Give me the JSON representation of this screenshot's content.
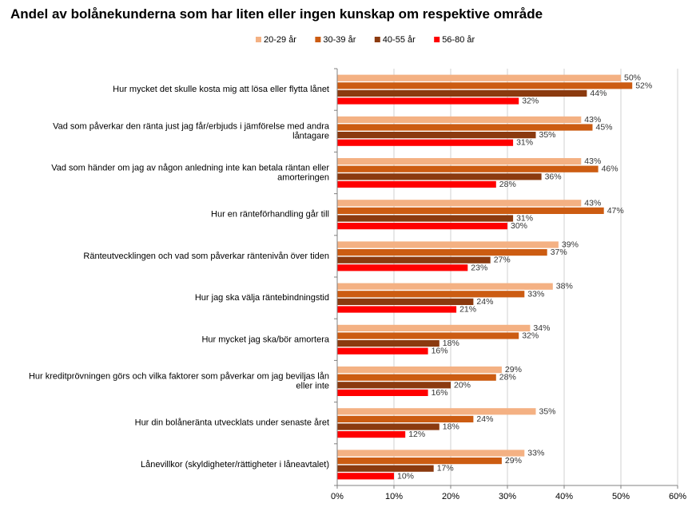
{
  "chart_data": {
    "type": "bar",
    "orientation": "horizontal",
    "title": "Andel av bolånekunderna som har liten eller ingen kunskap om respektive område",
    "categories": [
      [
        "Hur mycket det skulle kosta mig att lösa eller flytta lånet"
      ],
      [
        "Vad som påverkar den ränta just jag får/erbjuds i jämförelse med andra",
        "låntagare"
      ],
      [
        "Vad som händer om jag av någon anledning inte kan betala räntan eller",
        "amorteringen"
      ],
      [
        "Hur en ränteförhandling går till"
      ],
      [
        "Ränteutvecklingen och vad som påverkar räntenivån över tiden"
      ],
      [
        "Hur jag ska välja räntebindningstid"
      ],
      [
        "Hur mycket jag ska/bör amortera"
      ],
      [
        "Hur kreditprövningen görs och vilka faktorer som påverkar om jag beviljas lån",
        "eller inte"
      ],
      [
        "Hur din bolåneränta utvecklats under senaste året"
      ],
      [
        "Lånevillkor (skyldigheter/rättigheter i låneavtalet)"
      ]
    ],
    "series": [
      {
        "name": "20-29 år",
        "color": "#f4b183",
        "values": [
          50,
          43,
          43,
          43,
          39,
          38,
          34,
          29,
          35,
          33
        ],
        "labels": [
          "50%",
          "43%",
          "43%",
          "43%",
          "39%",
          "38%",
          "34%",
          "29%",
          "35%",
          "33%"
        ]
      },
      {
        "name": "30-39 år",
        "color": "#cc5c12",
        "values": [
          52,
          45,
          46,
          47,
          37,
          33,
          32,
          28,
          24,
          29
        ],
        "labels": [
          "52%",
          "45%",
          "46%",
          "47%",
          "37%",
          "33%",
          "32%",
          "28%",
          "24%",
          "29%"
        ]
      },
      {
        "name": "40-55 år",
        "color": "#8b3a0f",
        "values": [
          44,
          35,
          36,
          31,
          27,
          24,
          18,
          20,
          18,
          17
        ],
        "labels": [
          "44%",
          "35%",
          "36%",
          "31%",
          "27%",
          "24%",
          "18%",
          "20%",
          "18%",
          "17%"
        ]
      },
      {
        "name": "56-80 år",
        "color": "#ff0000",
        "values": [
          32,
          31,
          28,
          30,
          23,
          21,
          16,
          16,
          12,
          10
        ],
        "labels": [
          "32%",
          "31%",
          "28%",
          "30%",
          "23%",
          "21%",
          "16%",
          "16%",
          "12%",
          "10%"
        ]
      }
    ],
    "xlim": [
      0,
      60
    ],
    "xticks": [
      0,
      10,
      20,
      30,
      40,
      50,
      60
    ],
    "xtick_labels": [
      "0%",
      "10%",
      "20%",
      "30%",
      "40%",
      "50%",
      "60%"
    ],
    "grid": "vertical",
    "legend_position": "top-center"
  }
}
